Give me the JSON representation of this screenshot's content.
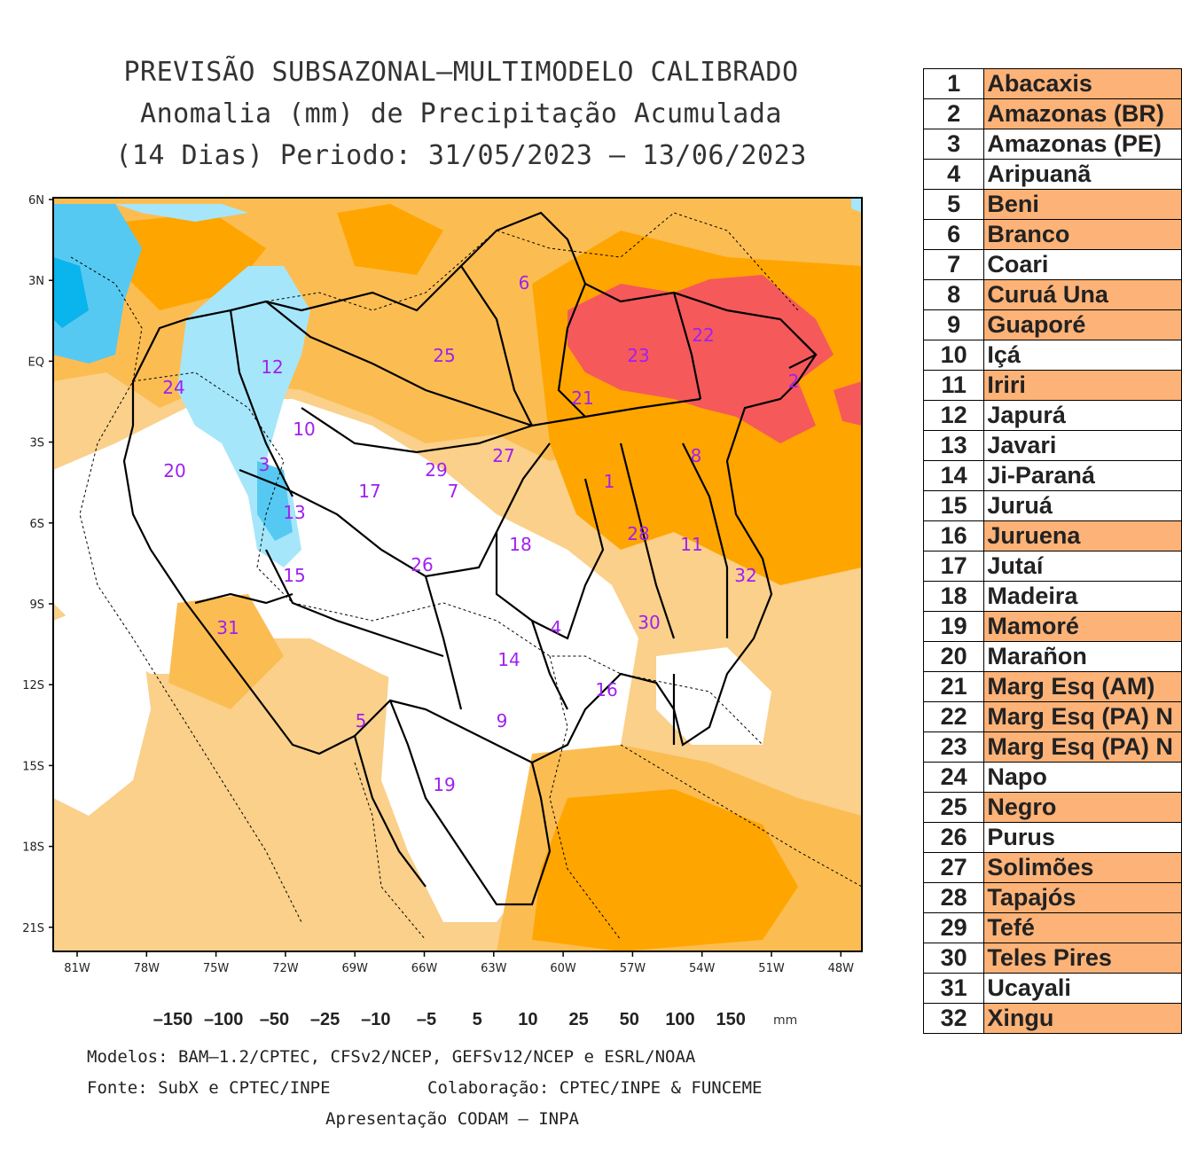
{
  "title": {
    "line1": "PREVISÃO SUBSAZONAL–MULTIMODELO CALIBRADO",
    "line2": "Anomalia (mm) de Precipitação Acumulada",
    "line3": "(14 Dias) Periodo: 31/05/2023 – 13/06/2023"
  },
  "map": {
    "lat_labels": [
      "6N",
      "3N",
      "EQ",
      "3S",
      "6S",
      "9S",
      "12S",
      "15S",
      "18S",
      "21S"
    ],
    "lon_labels": [
      "81W",
      "78W",
      "75W",
      "72W",
      "69W",
      "66W",
      "63W",
      "60W",
      "57W",
      "54W",
      "51W",
      "48W"
    ],
    "basin_numbers": [
      "1",
      "2",
      "3",
      "4",
      "5",
      "6",
      "7",
      "8",
      "9",
      "10",
      "11",
      "12",
      "13",
      "14",
      "15",
      "16",
      "17",
      "18",
      "19",
      "20",
      "21",
      "22",
      "23",
      "24",
      "25",
      "26",
      "27",
      "28",
      "29",
      "30",
      "31",
      "32"
    ]
  },
  "colorbar": {
    "labels": [
      "–150",
      "–100",
      "–50",
      "–25",
      "–10",
      "–5",
      "5",
      "10",
      "25",
      "50",
      "100",
      "150"
    ],
    "unit": "mm",
    "colors": [
      "#c00000",
      "#e8262b",
      "#f5595a",
      "#ffa500",
      "#fbbd52",
      "#fad08a",
      "#ffffff",
      "#a6e6fb",
      "#56c9f2",
      "#0ab4ec",
      "#0b90c5",
      "#08617f"
    ],
    "end_low": "#a80000",
    "end_high": "#08455d"
  },
  "footer": {
    "models": "Modelos: BAM–1.2/CPTEC, CFSv2/NCEP, GEFSv12/NCEP e ESRL/NOAA",
    "source": "Fonte: SubX e CPTEC/INPE",
    "collab": "Colaboração: CPTEC/INPE & FUNCEME",
    "presentation": "Apresentação CODAM – INPA"
  },
  "basins": [
    {
      "n": "1",
      "name": "Abacaxis",
      "hl": true
    },
    {
      "n": "2",
      "name": "Amazonas (BR)",
      "hl": true
    },
    {
      "n": "3",
      "name": "Amazonas (PE)",
      "hl": false
    },
    {
      "n": "4",
      "name": "Aripuanã",
      "hl": false
    },
    {
      "n": "5",
      "name": "Beni",
      "hl": true
    },
    {
      "n": "6",
      "name": "Branco",
      "hl": true
    },
    {
      "n": "7",
      "name": "Coari",
      "hl": false
    },
    {
      "n": "8",
      "name": "Curuá Una",
      "hl": true
    },
    {
      "n": "9",
      "name": "Guaporé",
      "hl": true
    },
    {
      "n": "10",
      "name": "Içá",
      "hl": false
    },
    {
      "n": "11",
      "name": "Iriri",
      "hl": true
    },
    {
      "n": "12",
      "name": "Japurá",
      "hl": false
    },
    {
      "n": "13",
      "name": "Javari",
      "hl": false
    },
    {
      "n": "14",
      "name": "Ji-Paraná",
      "hl": false
    },
    {
      "n": "15",
      "name": "Juruá",
      "hl": false
    },
    {
      "n": "16",
      "name": "Juruena",
      "hl": true
    },
    {
      "n": "17",
      "name": "Jutaí",
      "hl": false
    },
    {
      "n": "18",
      "name": "Madeira",
      "hl": false
    },
    {
      "n": "19",
      "name": "Mamoré",
      "hl": true
    },
    {
      "n": "20",
      "name": "Marañon",
      "hl": false
    },
    {
      "n": "21",
      "name": "Marg Esq (AM)",
      "hl": true
    },
    {
      "n": "22",
      "name": "Marg Esq (PA) N",
      "hl": true
    },
    {
      "n": "23",
      "name": "Marg Esq (PA) N",
      "hl": true
    },
    {
      "n": "24",
      "name": "Napo",
      "hl": false
    },
    {
      "n": "25",
      "name": "Negro",
      "hl": true
    },
    {
      "n": "26",
      "name": "Purus",
      "hl": false
    },
    {
      "n": "27",
      "name": "Solimões",
      "hl": true
    },
    {
      "n": "28",
      "name": "Tapajós",
      "hl": true
    },
    {
      "n": "29",
      "name": "Tefé",
      "hl": true
    },
    {
      "n": "30",
      "name": "Teles Pires",
      "hl": true
    },
    {
      "n": "31",
      "name": "Ucayali",
      "hl": false
    },
    {
      "n": "32",
      "name": "Xingu",
      "hl": true
    }
  ]
}
